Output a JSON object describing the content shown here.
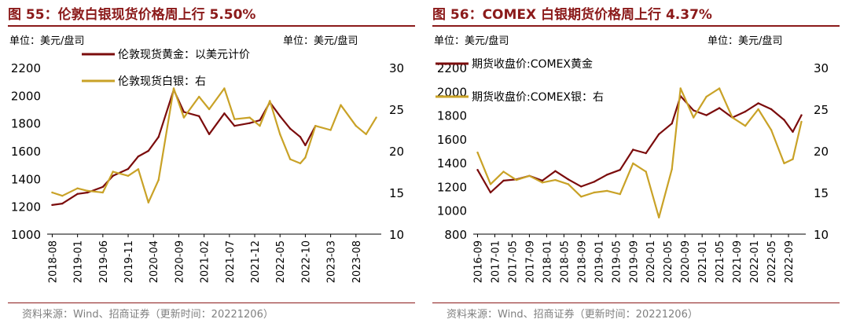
{
  "charts": [
    {
      "title": "图 55：伦敦白银现货价格周上行 5.50%",
      "source": "资料来源：Wind、招商证券（更新时间：20221206）",
      "unit_left": "单位：美元/盘司",
      "unit_right": "单位：美元/盘司",
      "legend": [
        "伦敦现货黄金：以美元计价",
        "伦敦现货白银：右"
      ]
    },
    {
      "title": "图 56：COMEX 白银期货价格周上行 4.37%",
      "source": "资料来源：Wind、招商证券（更新时间：20221206）",
      "unit_left": "单位：美元/盘司",
      "unit_right": "单位：美元/盘司",
      "legend": [
        "期货收盘价:COMEX黄金",
        "期货收盘价:COMEX银：右"
      ]
    }
  ],
  "colors": {
    "gold": "#7b0c0c",
    "silver": "#c9a227",
    "title": "#8b1a1a",
    "axis": "#000000",
    "source": "#7f7f7f"
  },
  "chart_data": [
    {
      "type": "line",
      "ylim_left": [
        1000,
        2200
      ],
      "yticks_left": [
        1000,
        1200,
        1400,
        1600,
        1800,
        2000,
        2200
      ],
      "ylim_right": [
        10,
        30
      ],
      "yticks_right": [
        10,
        15,
        20,
        25,
        30
      ],
      "tick_labels": [
        "2018-08",
        "2019-01",
        "2019-06",
        "2019-11",
        "2020-04",
        "2020-09",
        "2021-02",
        "2021-07",
        "2021-12",
        "2022-05",
        "2022-10",
        "2023-03",
        "2023-08"
      ],
      "x": [
        "2018-08",
        "2018-10",
        "2019-01",
        "2019-03",
        "2019-06",
        "2019-08",
        "2019-11",
        "2020-01",
        "2020-03",
        "2020-05",
        "2020-08",
        "2020-10",
        "2021-01",
        "2021-03",
        "2021-06",
        "2021-08",
        "2021-11",
        "2022-01",
        "2022-03",
        "2022-05",
        "2022-07",
        "2022-09",
        "2022-10",
        "2022-12",
        "2023-03",
        "2023-05",
        "2023-08",
        "2023-10",
        "2023-12"
      ],
      "series": [
        {
          "name": "伦敦现货黄金：以美元计价",
          "axis": "left",
          "values": [
            1210,
            1220,
            1290,
            1300,
            1340,
            1420,
            1470,
            1560,
            1600,
            1700,
            2040,
            1880,
            1850,
            1720,
            1870,
            1780,
            1800,
            1820,
            1950,
            1850,
            1760,
            1700,
            1640,
            1780,
            null,
            null,
            null,
            null,
            null
          ]
        },
        {
          "name": "伦敦现货白银：右",
          "axis": "right",
          "values": [
            15.0,
            14.6,
            15.5,
            15.2,
            15.0,
            17.5,
            17.0,
            17.8,
            13.8,
            16.5,
            27.5,
            24.0,
            26.5,
            25.0,
            27.5,
            23.8,
            24.0,
            23.0,
            26.0,
            22.0,
            19.0,
            18.5,
            19.2,
            23.0,
            22.5,
            25.5,
            23.0,
            22.0,
            24.0
          ]
        }
      ]
    },
    {
      "type": "line",
      "ylim_left": [
        800,
        2200
      ],
      "yticks_left": [
        800,
        1000,
        1200,
        1400,
        1600,
        1800,
        2000,
        2200
      ],
      "ylim_right": [
        10,
        30
      ],
      "yticks_right": [
        10,
        15,
        20,
        25,
        30
      ],
      "tick_labels": [
        "2016-09",
        "2017-01",
        "2017-05",
        "2017-09",
        "2018-01",
        "2018-05",
        "2018-09",
        "2019-01",
        "2019-05",
        "2019-09",
        "2020-01",
        "2020-05",
        "2020-09",
        "2021-01",
        "2021-05",
        "2021-09",
        "2022-01",
        "2022-05",
        "2022-09"
      ],
      "x": [
        "2016-09",
        "2016-12",
        "2017-03",
        "2017-06",
        "2017-09",
        "2017-12",
        "2018-03",
        "2018-06",
        "2018-09",
        "2018-12",
        "2019-03",
        "2019-06",
        "2019-09",
        "2019-12",
        "2020-03",
        "2020-06",
        "2020-08",
        "2020-11",
        "2021-02",
        "2021-05",
        "2021-08",
        "2021-11",
        "2022-02",
        "2022-05",
        "2022-08",
        "2022-10",
        "2022-12"
      ],
      "series": [
        {
          "name": "期货收盘价:COMEX黄金",
          "axis": "left",
          "values": [
            1340,
            1150,
            1250,
            1260,
            1290,
            1250,
            1330,
            1260,
            1200,
            1240,
            1300,
            1340,
            1510,
            1480,
            1640,
            1730,
            1960,
            1840,
            1800,
            1860,
            1780,
            1830,
            1900,
            1850,
            1760,
            1660,
            1800
          ]
        },
        {
          "name": "期货收盘价:COMEX银：右",
          "axis": "right",
          "values": [
            19.8,
            16.0,
            17.5,
            16.5,
            17.0,
            16.2,
            16.5,
            16.0,
            14.5,
            15.0,
            15.2,
            14.8,
            18.5,
            17.5,
            12.0,
            17.8,
            27.5,
            24.0,
            26.5,
            27.5,
            24.0,
            23.0,
            25.0,
            22.5,
            18.5,
            19.0,
            23.5
          ]
        }
      ]
    }
  ]
}
